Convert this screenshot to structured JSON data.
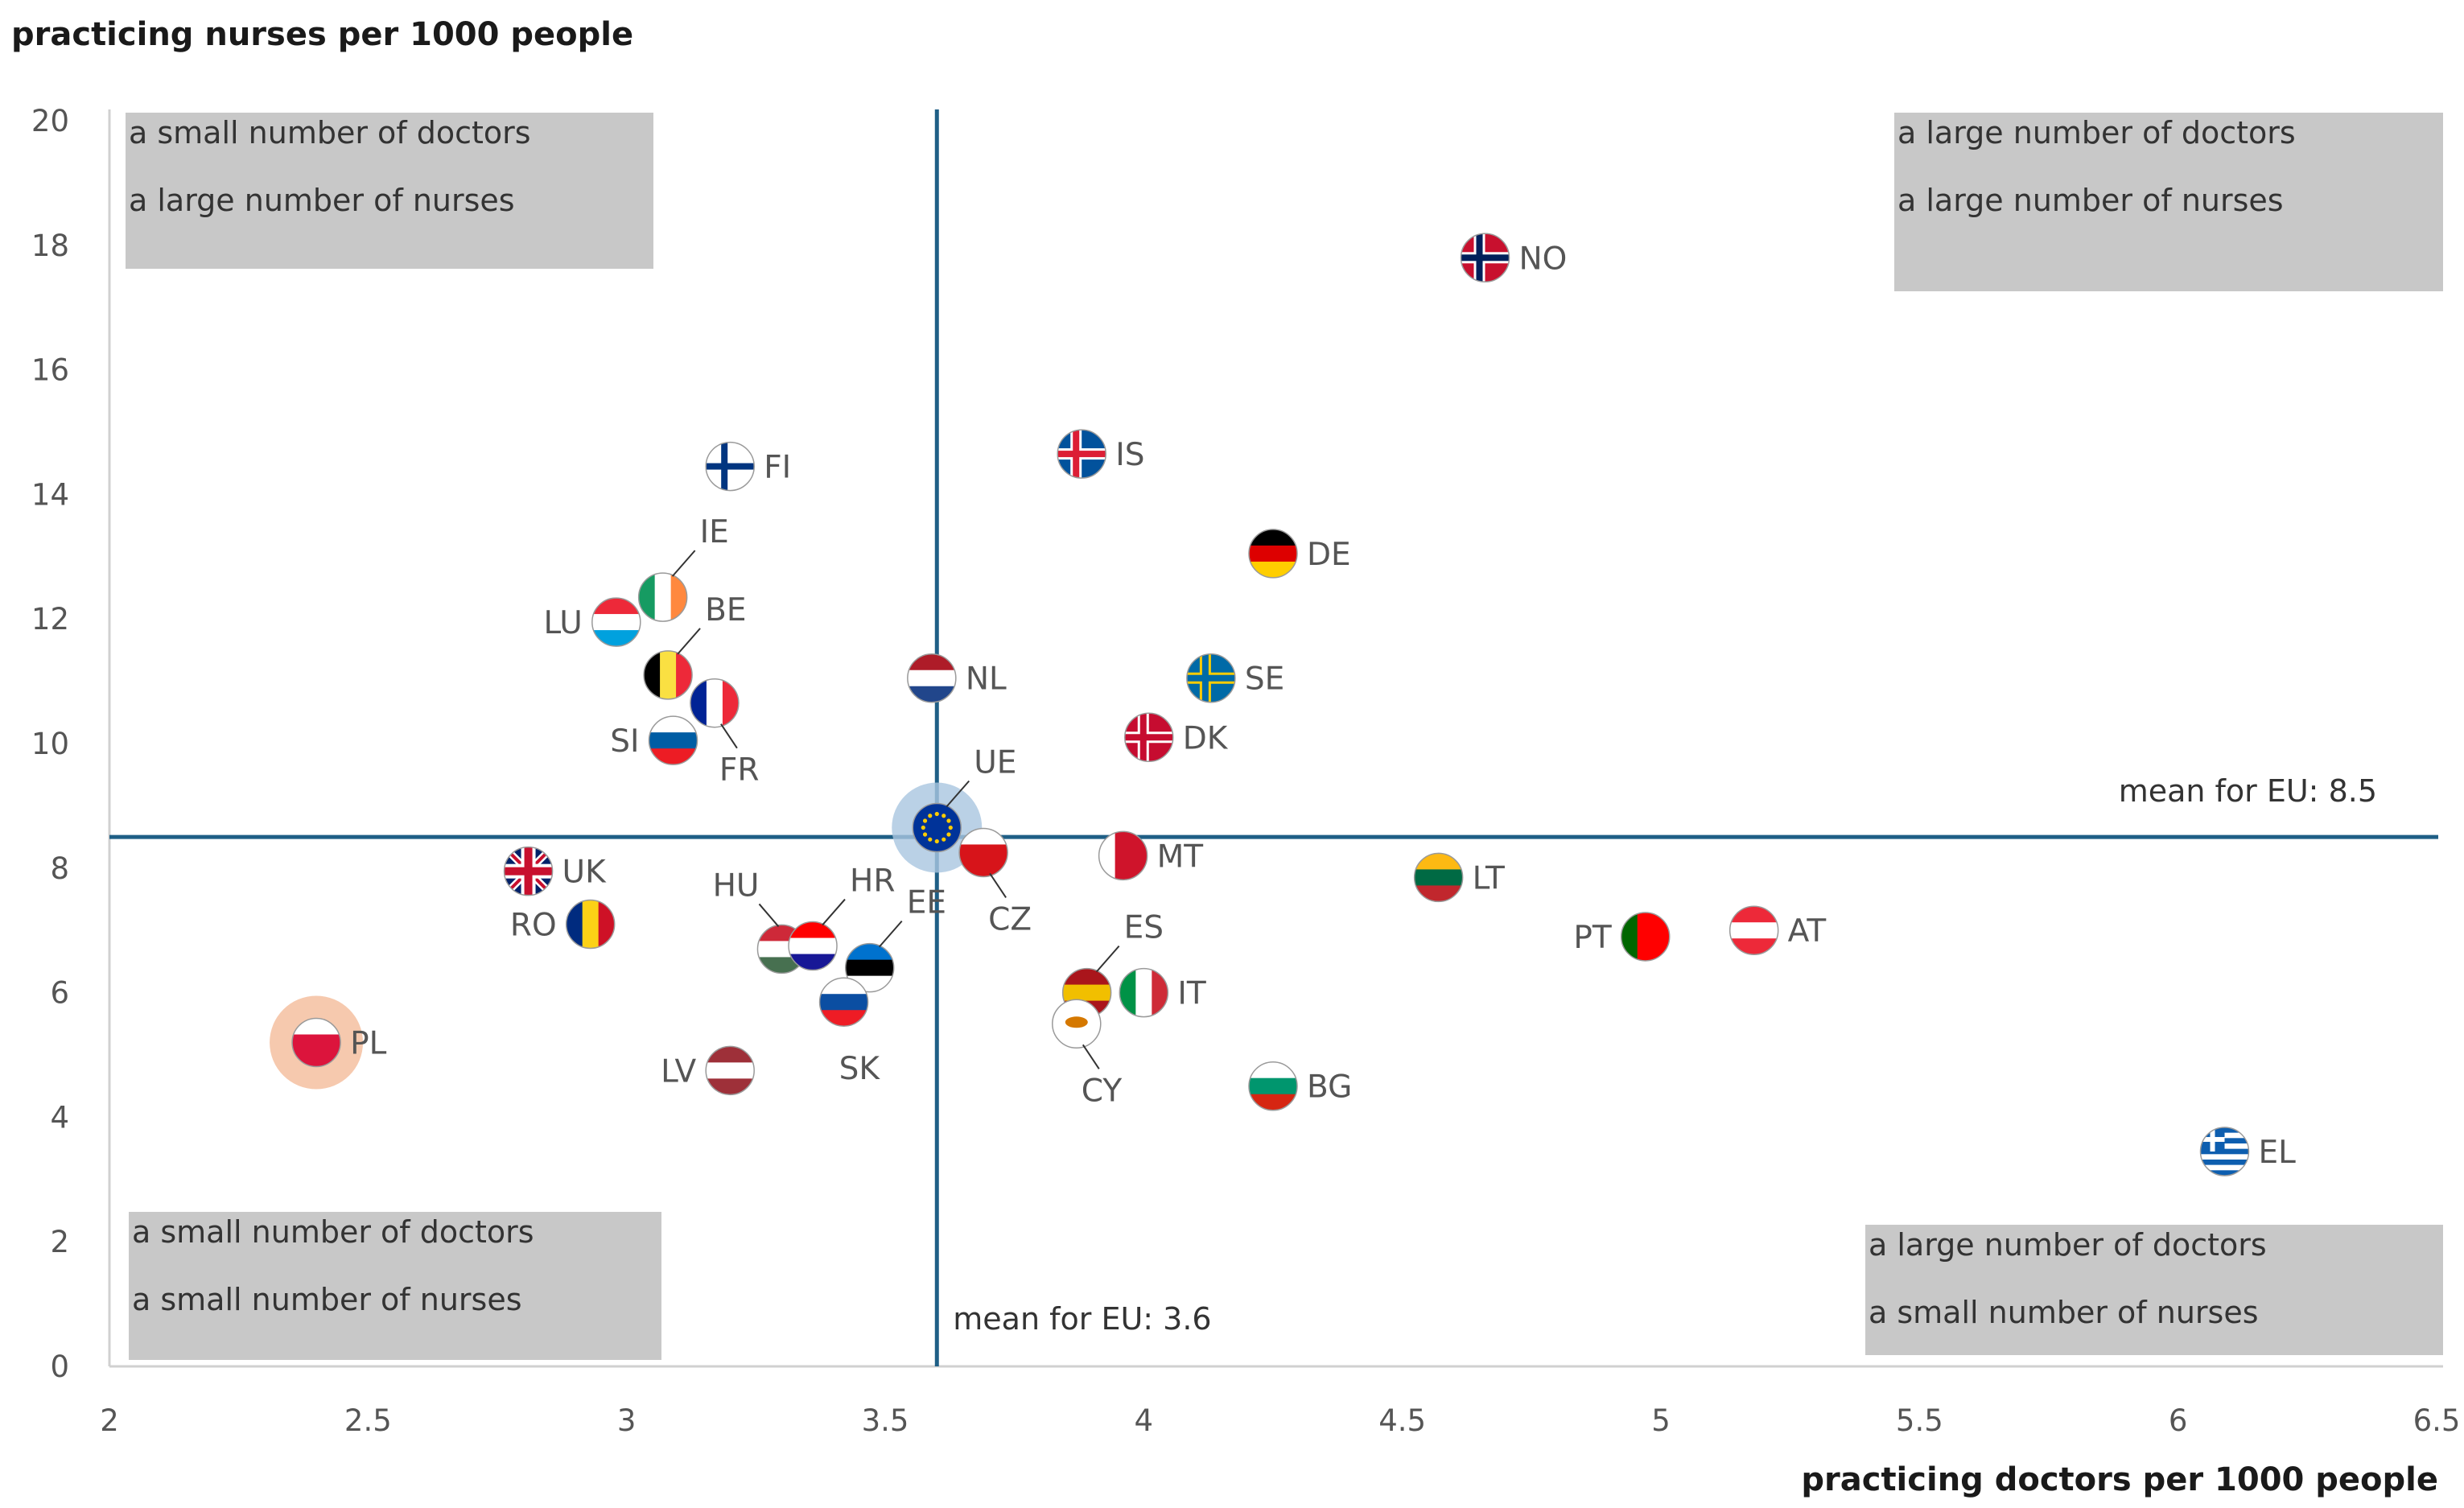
{
  "chart_data": {
    "type": "scatter",
    "title": "",
    "ylabel": "practicing nurses per 1000 people",
    "xlabel": "practicing doctors per 1000 people",
    "xlim": [
      2,
      6.5
    ],
    "ylim": [
      0,
      20
    ],
    "x_ticks": [
      "2",
      "2.5",
      "3",
      "3.5",
      "4",
      "4.5",
      "5",
      "5.5",
      "6",
      "6.5"
    ],
    "y_ticks": [
      "0",
      "2",
      "4",
      "6",
      "8",
      "10",
      "12",
      "14",
      "16",
      "18",
      "20"
    ],
    "grid": false,
    "mean_x": 3.6,
    "mean_y": 8.5,
    "mean_x_label": "mean for EU: 3.6",
    "mean_y_label": "mean for EU: 8.5",
    "quadrants": [
      {
        "position": "top-left",
        "line1": "a small number of doctors",
        "line2": "a large number of nurses"
      },
      {
        "position": "top-right",
        "line1": "a large number of doctors",
        "line2": "a large number of nurses"
      },
      {
        "position": "bottom-left",
        "line1": "a small number of doctors",
        "line2": "a small number of nurses"
      },
      {
        "position": "bottom-right",
        "line1": "a large number of doctors",
        "line2": "a small number of nurses"
      }
    ],
    "points": [
      {
        "label": "NO",
        "x": 4.66,
        "y": 17.8,
        "label_side": "right",
        "flag": "nordic-cross",
        "colors": [
          "#c8102e",
          "#ffffff",
          "#00205b"
        ]
      },
      {
        "label": "FI",
        "x": 3.2,
        "y": 14.45,
        "label_side": "right",
        "flag": "nordic-cross",
        "colors": [
          "#ffffff",
          "#ffffff",
          "#003580"
        ]
      },
      {
        "label": "IS",
        "x": 3.88,
        "y": 14.65,
        "label_side": "right",
        "flag": "nordic-cross",
        "colors": [
          "#02529c",
          "#ffffff",
          "#dc1e35"
        ]
      },
      {
        "label": "DE",
        "x": 4.25,
        "y": 13.05,
        "label_side": "right",
        "flag": "horizontal",
        "colors": [
          "#000000",
          "#dd0000",
          "#ffce00"
        ]
      },
      {
        "label": "IE",
        "x": 3.07,
        "y": 12.35,
        "label_side": "callout-up",
        "flag": "vertical",
        "colors": [
          "#169b62",
          "#ffffff",
          "#ff883e"
        ]
      },
      {
        "label": "LU",
        "x": 2.98,
        "y": 11.95,
        "label_side": "left",
        "flag": "horizontal",
        "colors": [
          "#ed2939",
          "#ffffff",
          "#00a1de"
        ]
      },
      {
        "label": "BE",
        "x": 3.08,
        "y": 11.1,
        "label_side": "callout-up",
        "flag": "vertical",
        "colors": [
          "#000000",
          "#fae042",
          "#ed2939"
        ]
      },
      {
        "label": "FR",
        "x": 3.17,
        "y": 10.65,
        "label_side": "callout-down",
        "flag": "vertical",
        "colors": [
          "#002395",
          "#ffffff",
          "#ed2939"
        ]
      },
      {
        "label": "SI",
        "x": 3.09,
        "y": 10.05,
        "label_side": "left",
        "flag": "horizontal",
        "colors": [
          "#ffffff",
          "#005da4",
          "#ed1c24"
        ]
      },
      {
        "label": "NL",
        "x": 3.59,
        "y": 11.05,
        "label_side": "right",
        "flag": "horizontal",
        "colors": [
          "#ae1c28",
          "#ffffff",
          "#21468b"
        ]
      },
      {
        "label": "SE",
        "x": 4.13,
        "y": 11.05,
        "label_side": "right",
        "flag": "nordic-cross",
        "colors": [
          "#006aa7",
          "#fecc00",
          "#006aa7"
        ]
      },
      {
        "label": "DK",
        "x": 4.01,
        "y": 10.1,
        "label_side": "right",
        "flag": "nordic-cross",
        "colors": [
          "#c60c30",
          "#ffffff",
          "#c60c30"
        ]
      },
      {
        "label": "UE",
        "x": 3.6,
        "y": 8.65,
        "label_side": "callout-up",
        "flag": "eu",
        "colors": [
          "#003399",
          "#ffcc00",
          "#003399"
        ]
      },
      {
        "label": "CZ",
        "x": 3.69,
        "y": 8.25,
        "label_side": "callout-down",
        "flag": "horizontal",
        "colors": [
          "#ffffff",
          "#d7141a",
          "#d7141a"
        ]
      },
      {
        "label": "MT",
        "x": 3.96,
        "y": 8.2,
        "label_side": "right",
        "flag": "vertical",
        "colors": [
          "#ffffff",
          "#cf142b",
          "#cf142b"
        ]
      },
      {
        "label": "UK",
        "x": 2.81,
        "y": 7.95,
        "label_side": "right",
        "flag": "cross",
        "colors": [
          "#012169",
          "#ffffff",
          "#c8102e"
        ]
      },
      {
        "label": "RO",
        "x": 2.93,
        "y": 7.1,
        "label_side": "left",
        "flag": "vertical",
        "colors": [
          "#002b7f",
          "#fcd116",
          "#ce1126"
        ]
      },
      {
        "label": "LT",
        "x": 4.57,
        "y": 7.85,
        "label_side": "right",
        "flag": "horizontal",
        "colors": [
          "#fdb913",
          "#006a44",
          "#c1272d"
        ]
      },
      {
        "label": "AT",
        "x": 5.18,
        "y": 7.0,
        "label_side": "right",
        "flag": "horizontal",
        "colors": [
          "#ed2939",
          "#ffffff",
          "#ed2939"
        ]
      },
      {
        "label": "PT",
        "x": 4.97,
        "y": 6.9,
        "label_side": "left",
        "flag": "vertical",
        "colors": [
          "#006600",
          "#ff0000",
          "#ff0000"
        ]
      },
      {
        "label": "HU",
        "x": 3.3,
        "y": 6.7,
        "label_side": "callout-left-up",
        "flag": "horizontal",
        "colors": [
          "#ce2939",
          "#ffffff",
          "#477050"
        ]
      },
      {
        "label": "HR",
        "x": 3.36,
        "y": 6.75,
        "label_side": "callout-up",
        "flag": "horizontal",
        "colors": [
          "#ff0000",
          "#ffffff",
          "#171796"
        ]
      },
      {
        "label": "EE",
        "x": 3.47,
        "y": 6.4,
        "label_side": "callout-up",
        "flag": "horizontal",
        "colors": [
          "#0072ce",
          "#000000",
          "#ffffff"
        ]
      },
      {
        "label": "SK",
        "x": 3.42,
        "y": 5.85,
        "label_side": "below",
        "flag": "horizontal",
        "colors": [
          "#ffffff",
          "#0b4ea2",
          "#ee1c25"
        ]
      },
      {
        "label": "ES",
        "x": 3.89,
        "y": 6.0,
        "label_side": "callout-up",
        "flag": "horizontal",
        "colors": [
          "#aa151b",
          "#f1bf00",
          "#aa151b"
        ]
      },
      {
        "label": "IT",
        "x": 4.0,
        "y": 6.0,
        "label_side": "right",
        "flag": "vertical",
        "colors": [
          "#009246",
          "#ffffff",
          "#ce2b37"
        ]
      },
      {
        "label": "CY",
        "x": 3.87,
        "y": 5.5,
        "label_side": "callout-down",
        "flag": "plain",
        "colors": [
          "#ffffff",
          "#d57800",
          "#ffffff"
        ]
      },
      {
        "label": "PL",
        "x": 2.4,
        "y": 5.2,
        "label_side": "right",
        "flag": "horizontal",
        "colors": [
          "#ffffff",
          "#dc143c",
          "#dc143c"
        ],
        "highlight": true
      },
      {
        "label": "LV",
        "x": 3.2,
        "y": 4.75,
        "label_side": "left",
        "flag": "horizontal",
        "colors": [
          "#9e3039",
          "#ffffff",
          "#9e3039"
        ]
      },
      {
        "label": "BG",
        "x": 4.25,
        "y": 4.5,
        "label_side": "right",
        "flag": "horizontal",
        "colors": [
          "#ffffff",
          "#00966e",
          "#d62612"
        ]
      },
      {
        "label": "EL",
        "x": 6.09,
        "y": 3.45,
        "label_side": "right",
        "flag": "stripes",
        "colors": [
          "#0d5eaf",
          "#ffffff",
          "#0d5eaf"
        ]
      }
    ]
  }
}
